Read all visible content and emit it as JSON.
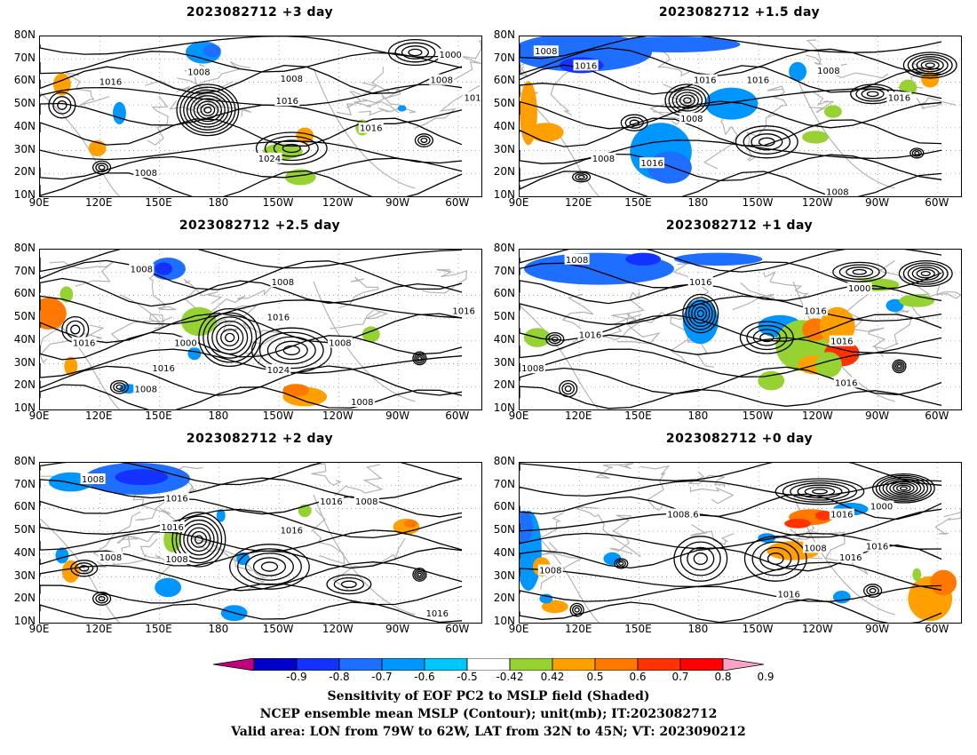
{
  "panels": [
    {
      "title": "2023082712 +3 day",
      "contour_labels": [
        "1008",
        "1016",
        "1008",
        "1016",
        "1024",
        "1016",
        "1008",
        "1000",
        "1008",
        "101"
      ]
    },
    {
      "title": "2023082712 +1.5 day",
      "contour_labels": [
        "1008",
        "1016",
        "1016",
        "1016",
        "1008",
        "1016",
        "1008",
        "1008",
        "1016",
        "1008"
      ]
    },
    {
      "title": "2023082712 +2.5 day",
      "contour_labels": [
        "1008",
        "1008",
        "1016",
        "1016",
        "1016",
        "1000",
        "1016",
        "1008",
        "1024",
        "1008",
        "1008"
      ]
    },
    {
      "title": "2023082712 +1 day",
      "contour_labels": [
        "1008",
        "1016",
        "1016",
        "1008",
        "1000",
        "1016",
        "1016",
        "1016"
      ]
    },
    {
      "title": "2023082712 +2 day",
      "contour_labels": [
        "1008",
        "1016",
        "1016",
        "1008",
        "1008",
        "1016",
        "1008",
        "1016",
        "1016"
      ]
    },
    {
      "title": "2023082712 +0 day",
      "contour_labels": [
        "1008",
        "1016",
        "1008",
        "1016",
        "1016",
        "1000",
        "1008",
        "1016",
        "1016"
      ]
    }
  ],
  "lat_labels": [
    "80N",
    "70N",
    "60N",
    "50N",
    "40N",
    "30N",
    "20N",
    "10N"
  ],
  "lon_labels": [
    "90E",
    "120E",
    "150E",
    "180",
    "150W",
    "120W",
    "90W",
    "60W"
  ],
  "colorbar": {
    "ticks": [
      "-0.9",
      "-0.8",
      "-0.7",
      "-0.6",
      "-0.5",
      "-0.42",
      "0.42",
      "0.5",
      "0.6",
      "0.7",
      "0.8",
      "0.9"
    ],
    "colors": [
      "#c0007f",
      "#0000c8",
      "#1432ff",
      "#1e6eff",
      "#0096ff",
      "#00c8ff",
      "#ffffff",
      "#96d232",
      "#ffa000",
      "#ff7800",
      "#ff3200",
      "#ff0000",
      "#ffa0c8"
    ]
  },
  "caption": {
    "line1": "Sensitivity of EOF PC2 to MSLP field (Shaded)",
    "line2": "NCEP ensemble mean MSLP (Contour); unit(mb); IT:2023082712",
    "line3": "Valid area: LON from 79W to 62W, LAT from 32N to 45N; VT: 2023090212"
  }
}
